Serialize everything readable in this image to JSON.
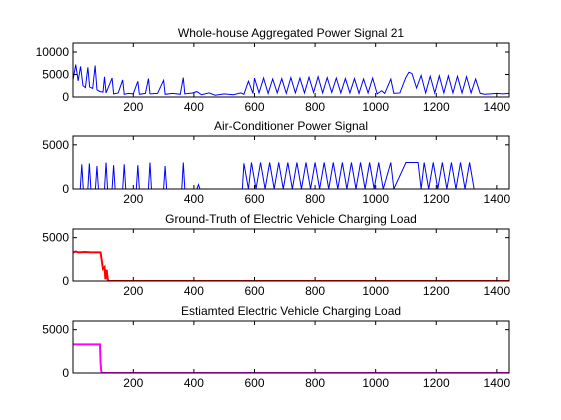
{
  "chart_data": [
    {
      "type": "line",
      "title": "Whole-house Aggregated Power Signal 21",
      "xlim": [
        1,
        1440
      ],
      "ylim": [
        0,
        12000
      ],
      "xticks": [
        200,
        400,
        600,
        800,
        1000,
        1200,
        1400
      ],
      "yticks": [
        0,
        5000,
        10000
      ],
      "series": [
        {
          "color": "#0000ff",
          "points": [
            [
              1,
              3800
            ],
            [
              10,
              7200
            ],
            [
              18,
              3600
            ],
            [
              26,
              6800
            ],
            [
              34,
              2500
            ],
            [
              42,
              2100
            ],
            [
              50,
              6600
            ],
            [
              56,
              2200
            ],
            [
              66,
              1900
            ],
            [
              74,
              7000
            ],
            [
              80,
              1600
            ],
            [
              90,
              1200
            ],
            [
              100,
              1100
            ],
            [
              105,
              4500
            ],
            [
              110,
              900
            ],
            [
              130,
              4200
            ],
            [
              135,
              700
            ],
            [
              150,
              900
            ],
            [
              165,
              3800
            ],
            [
              170,
              600
            ],
            [
              185,
              800
            ],
            [
              200,
              700
            ],
            [
              215,
              3500
            ],
            [
              220,
              600
            ],
            [
              240,
              800
            ],
            [
              250,
              4100
            ],
            [
              255,
              700
            ],
            [
              280,
              800
            ],
            [
              300,
              3700
            ],
            [
              305,
              600
            ],
            [
              330,
              800
            ],
            [
              355,
              600
            ],
            [
              365,
              4300
            ],
            [
              370,
              700
            ],
            [
              395,
              900
            ],
            [
              410,
              1200
            ],
            [
              425,
              500
            ],
            [
              450,
              900
            ],
            [
              470,
              400
            ],
            [
              500,
              700
            ],
            [
              530,
              500
            ],
            [
              555,
              900
            ],
            [
              565,
              600
            ],
            [
              580,
              3500
            ],
            [
              595,
              800
            ],
            [
              600,
              4200
            ],
            [
              615,
              900
            ],
            [
              630,
              4200
            ],
            [
              645,
              800
            ],
            [
              660,
              4000
            ],
            [
              675,
              900
            ],
            [
              690,
              4100
            ],
            [
              705,
              800
            ],
            [
              720,
              4300
            ],
            [
              735,
              900
            ],
            [
              750,
              4200
            ],
            [
              765,
              900
            ],
            [
              780,
              4400
            ],
            [
              795,
              1000
            ],
            [
              810,
              4500
            ],
            [
              825,
              900
            ],
            [
              840,
              4300
            ],
            [
              855,
              1000
            ],
            [
              870,
              4200
            ],
            [
              885,
              900
            ],
            [
              900,
              4100
            ],
            [
              915,
              900
            ],
            [
              930,
              4100
            ],
            [
              945,
              800
            ],
            [
              960,
              4000
            ],
            [
              975,
              900
            ],
            [
              990,
              4200
            ],
            [
              1005,
              700
            ],
            [
              1020,
              1400
            ],
            [
              1030,
              800
            ],
            [
              1050,
              4000
            ],
            [
              1060,
              800
            ],
            [
              1080,
              900
            ],
            [
              1100,
              4400
            ],
            [
              1110,
              5500
            ],
            [
              1120,
              5200
            ],
            [
              1135,
              2000
            ],
            [
              1150,
              4800
            ],
            [
              1165,
              900
            ],
            [
              1180,
              4600
            ],
            [
              1195,
              900
            ],
            [
              1210,
              4700
            ],
            [
              1225,
              900
            ],
            [
              1240,
              4700
            ],
            [
              1255,
              900
            ],
            [
              1270,
              4600
            ],
            [
              1285,
              900
            ],
            [
              1300,
              4500
            ],
            [
              1315,
              900
            ],
            [
              1330,
              4000
            ],
            [
              1345,
              800
            ],
            [
              1360,
              600
            ],
            [
              1380,
              700
            ],
            [
              1400,
              800
            ],
            [
              1420,
              700
            ],
            [
              1440,
              800
            ]
          ]
        }
      ]
    },
    {
      "type": "line",
      "title": "Air-Conditioner Power Signal",
      "xlim": [
        1,
        1440
      ],
      "ylim": [
        0,
        6000
      ],
      "xticks": [
        200,
        400,
        600,
        800,
        1000,
        1200,
        1400
      ],
      "yticks": [
        0,
        5000
      ],
      "series": [
        {
          "color": "#0000ff",
          "points": [
            [
              1,
              0
            ],
            [
              25,
              0
            ],
            [
              30,
              2800
            ],
            [
              35,
              0
            ],
            [
              50,
              0
            ],
            [
              55,
              2900
            ],
            [
              60,
              0
            ],
            [
              75,
              0
            ],
            [
              80,
              2600
            ],
            [
              85,
              0
            ],
            [
              105,
              0
            ],
            [
              110,
              3000
            ],
            [
              115,
              0
            ],
            [
              130,
              0
            ],
            [
              135,
              2700
            ],
            [
              140,
              0
            ],
            [
              165,
              0
            ],
            [
              170,
              2800
            ],
            [
              175,
              0
            ],
            [
              210,
              0
            ],
            [
              215,
              2700
            ],
            [
              220,
              0
            ],
            [
              250,
              0
            ],
            [
              255,
              3000
            ],
            [
              260,
              0
            ],
            [
              300,
              0
            ],
            [
              305,
              2600
            ],
            [
              310,
              0
            ],
            [
              360,
              0
            ],
            [
              365,
              3000
            ],
            [
              370,
              0
            ],
            [
              410,
              0
            ],
            [
              415,
              500
            ],
            [
              420,
              0
            ],
            [
              560,
              0
            ],
            [
              565,
              2900
            ],
            [
              580,
              0
            ],
            [
              590,
              3000
            ],
            [
              605,
              0
            ],
            [
              620,
              3000
            ],
            [
              635,
              0
            ],
            [
              650,
              3000
            ],
            [
              665,
              0
            ],
            [
              680,
              3000
            ],
            [
              695,
              0
            ],
            [
              710,
              3000
            ],
            [
              725,
              0
            ],
            [
              740,
              3000
            ],
            [
              755,
              0
            ],
            [
              770,
              3000
            ],
            [
              785,
              0
            ],
            [
              800,
              3000
            ],
            [
              815,
              0
            ],
            [
              830,
              3000
            ],
            [
              845,
              0
            ],
            [
              860,
              3000
            ],
            [
              875,
              0
            ],
            [
              890,
              3000
            ],
            [
              905,
              0
            ],
            [
              920,
              3000
            ],
            [
              935,
              0
            ],
            [
              950,
              3000
            ],
            [
              965,
              0
            ],
            [
              980,
              3000
            ],
            [
              995,
              0
            ],
            [
              1010,
              3000
            ],
            [
              1025,
              0
            ],
            [
              1050,
              3000
            ],
            [
              1060,
              0
            ],
            [
              1100,
              3000
            ],
            [
              1140,
              3000
            ],
            [
              1150,
              0
            ],
            [
              1160,
              3000
            ],
            [
              1175,
              0
            ],
            [
              1190,
              3000
            ],
            [
              1205,
              0
            ],
            [
              1220,
              3000
            ],
            [
              1235,
              0
            ],
            [
              1250,
              3000
            ],
            [
              1265,
              0
            ],
            [
              1280,
              3000
            ],
            [
              1295,
              0
            ],
            [
              1310,
              3000
            ],
            [
              1325,
              0
            ],
            [
              1440,
              0
            ]
          ]
        }
      ]
    },
    {
      "type": "line",
      "title": "Ground-Truth of Electric Vehicle Charging Load",
      "xlim": [
        1,
        1440
      ],
      "ylim": [
        0,
        6000
      ],
      "xticks": [
        200,
        400,
        600,
        800,
        1000,
        1200,
        1400
      ],
      "yticks": [
        0,
        5000
      ],
      "series": [
        {
          "color": "#ff0000",
          "points": [
            [
              1,
              3300
            ],
            [
              10,
              3400
            ],
            [
              20,
              3300
            ],
            [
              40,
              3350
            ],
            [
              60,
              3300
            ],
            [
              80,
              3300
            ],
            [
              92,
              3300
            ],
            [
              100,
              1400
            ],
            [
              105,
              1600
            ],
            [
              108,
              200
            ],
            [
              112,
              1300
            ],
            [
              116,
              100
            ],
            [
              120,
              0
            ],
            [
              1440,
              0
            ]
          ]
        }
      ]
    },
    {
      "type": "line",
      "title": "Estiamted Electric Vehicle Charging Load",
      "xlim": [
        1,
        1440
      ],
      "ylim": [
        0,
        6000
      ],
      "xticks": [
        200,
        400,
        600,
        800,
        1000,
        1200,
        1400
      ],
      "yticks": [
        0,
        5000
      ],
      "series": [
        {
          "color": "#ff00ff",
          "points": [
            [
              1,
              3300
            ],
            [
              90,
              3300
            ],
            [
              92,
              1200
            ],
            [
              94,
              300
            ],
            [
              96,
              0
            ],
            [
              1440,
              0
            ]
          ]
        }
      ]
    }
  ]
}
